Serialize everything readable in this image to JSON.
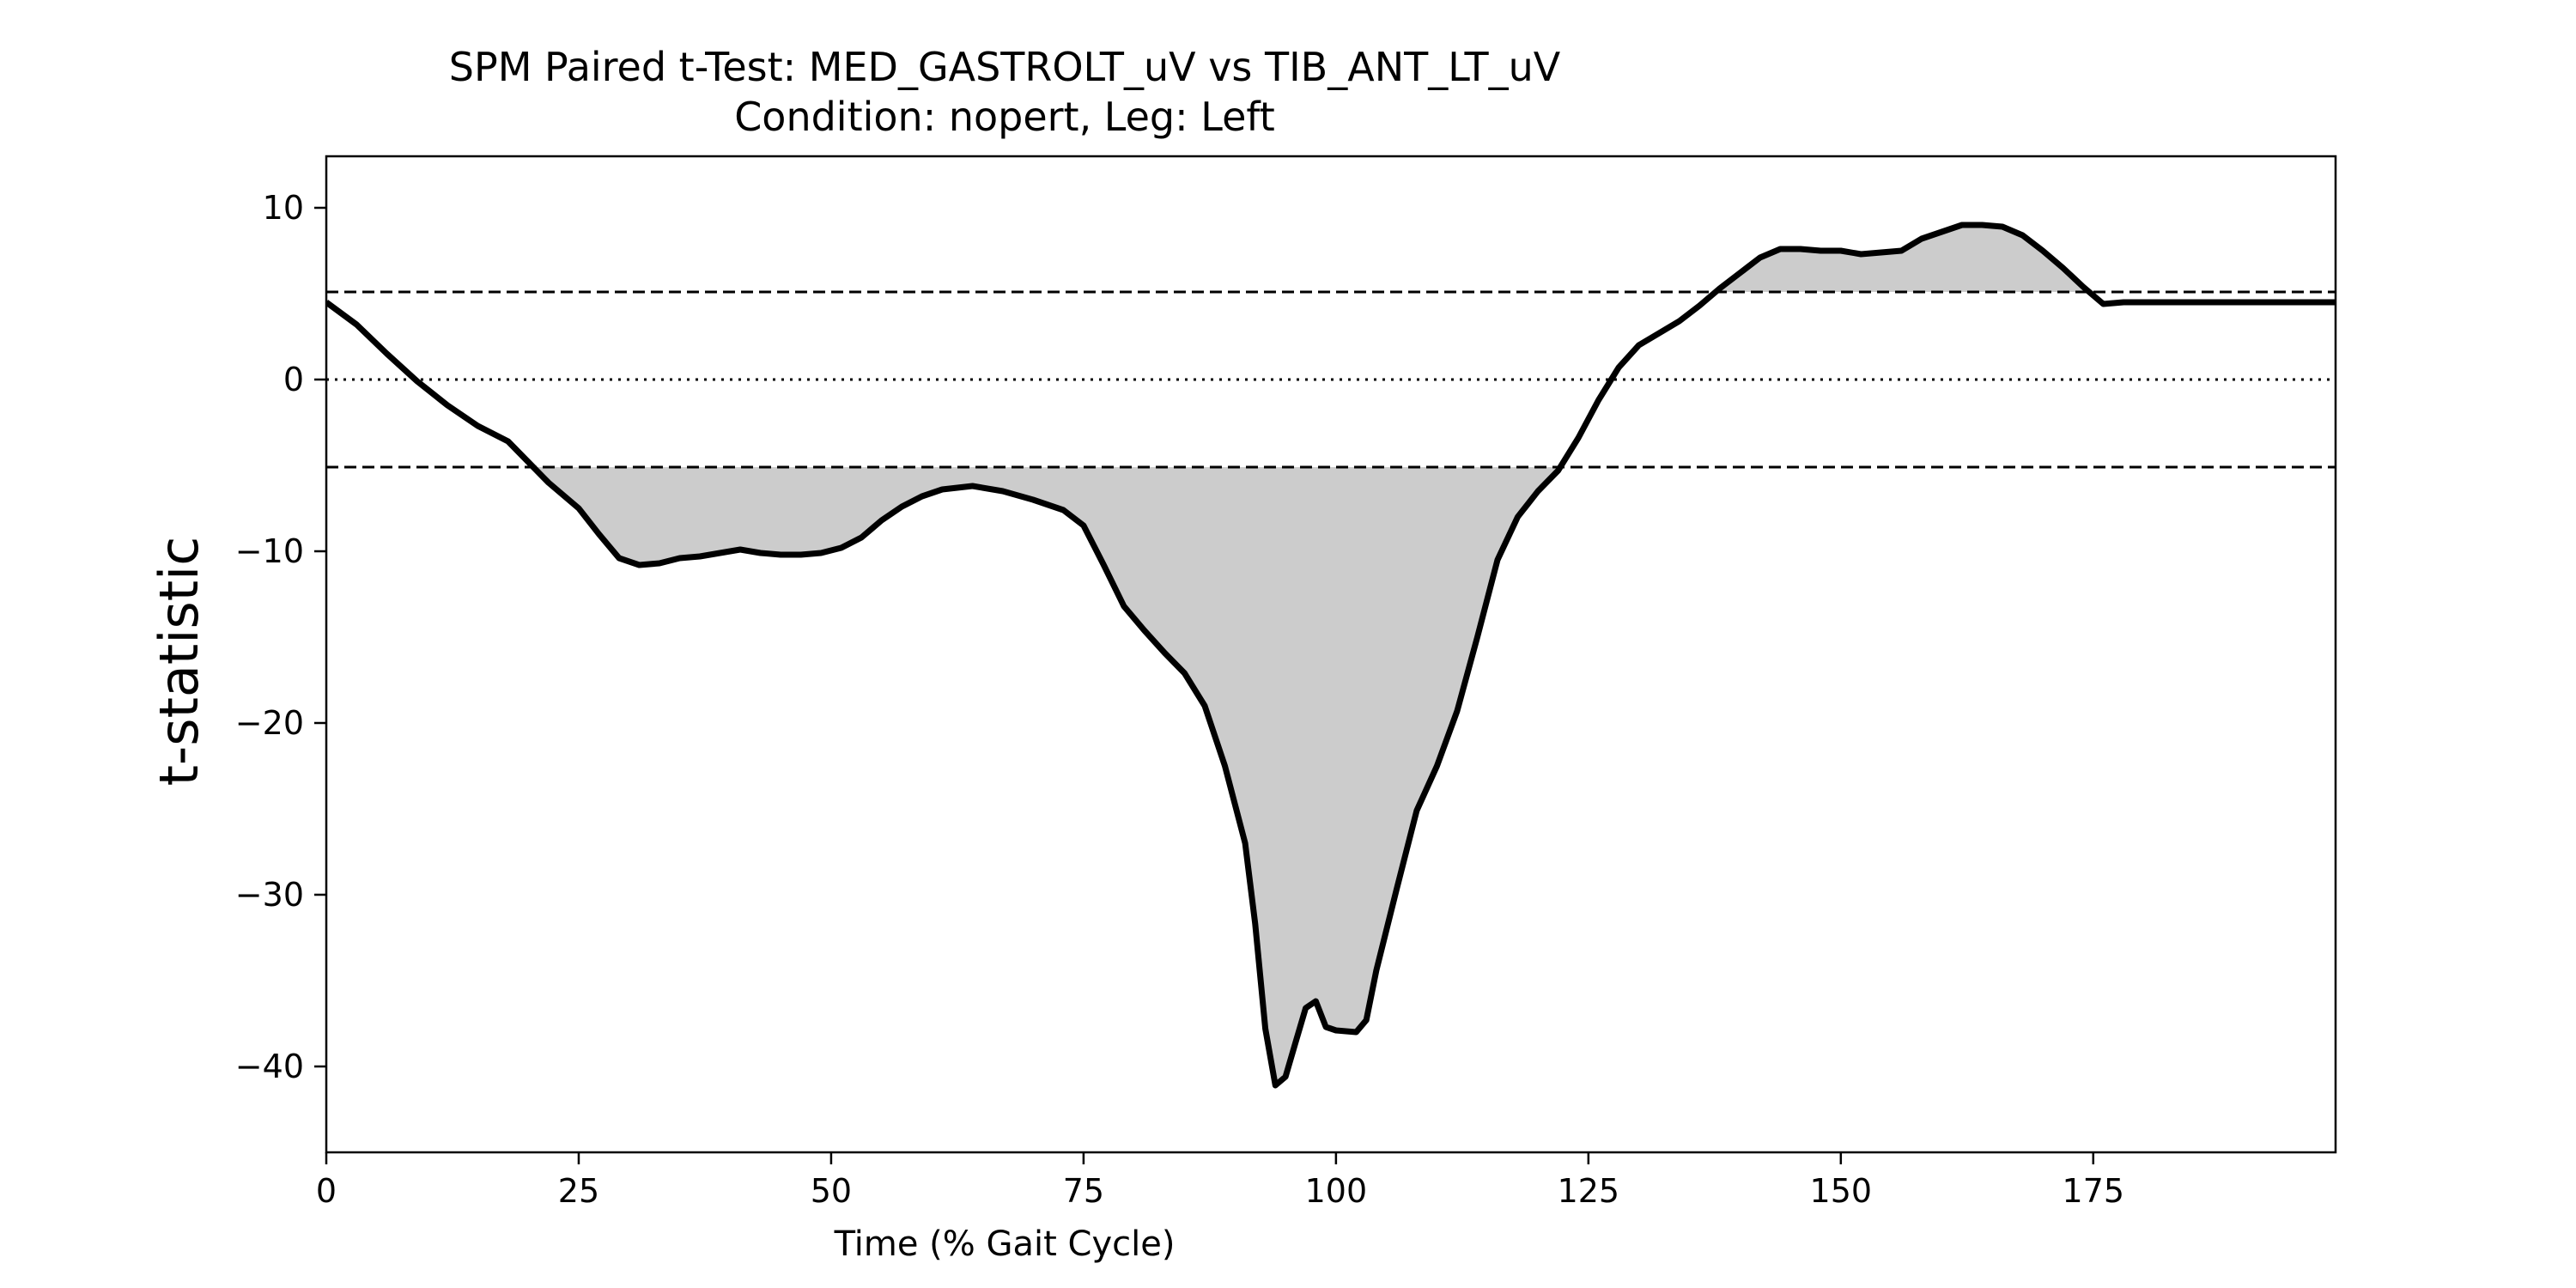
{
  "chart_data": {
    "type": "line",
    "title": "SPM Paired t-Test: MED_GASTROLT_uV vs TIB_ANT_LT_uV",
    "subtitle": "Condition: nopert, Leg: Left",
    "xlabel": "Time (% Gait Cycle)",
    "ylabel": "t-statistic",
    "xlim": [
      0,
      199
    ],
    "ylim": [
      -45,
      13
    ],
    "xticks": [
      0,
      25,
      50,
      75,
      100,
      125,
      150,
      175
    ],
    "xtick_labels": [
      "0",
      "25",
      "50",
      "75",
      "100",
      "125",
      "150",
      "175"
    ],
    "yticks": [
      10,
      0,
      -10,
      -20,
      -30,
      -40
    ],
    "ytick_labels": [
      "10",
      "0",
      "−10",
      "−20",
      "−30",
      "−40"
    ],
    "threshold": 5.1,
    "zero_line": 0,
    "grid": false,
    "colors": {
      "line": "#000000",
      "fill": "#cccccc",
      "threshold": "#000000"
    },
    "x": [
      0,
      3,
      6,
      9,
      12,
      15,
      18,
      20,
      22,
      25,
      27,
      29,
      31,
      33,
      35,
      37,
      39,
      41,
      43,
      45,
      47,
      49,
      51,
      53,
      55,
      57,
      59,
      61,
      64,
      67,
      70,
      73,
      75,
      77,
      79,
      81,
      83,
      85,
      87,
      89,
      91,
      92,
      93,
      94,
      95,
      96,
      97,
      98,
      99,
      100,
      102,
      103,
      104,
      106,
      108,
      110,
      112,
      114,
      116,
      118,
      120,
      122,
      124,
      126,
      128,
      130,
      132,
      134,
      136,
      138,
      140,
      142,
      144,
      146,
      148,
      150,
      152,
      154,
      156,
      158,
      160,
      162,
      164,
      166,
      168,
      170,
      172,
      174,
      176,
      178,
      180,
      182,
      184,
      186,
      188,
      190,
      192,
      194,
      196,
      198,
      199
    ],
    "y": [
      4.5,
      3.2,
      1.5,
      -0.1,
      -1.5,
      -2.7,
      -3.6,
      -4.8,
      -6.0,
      -7.5,
      -9.0,
      -10.4,
      -10.8,
      -10.7,
      -10.4,
      -10.3,
      -10.1,
      -9.9,
      -10.1,
      -10.2,
      -10.2,
      -10.1,
      -9.8,
      -9.2,
      -8.2,
      -7.4,
      -6.8,
      -6.4,
      -6.2,
      -6.5,
      -7.0,
      -7.6,
      -8.5,
      -10.8,
      -13.2,
      -14.6,
      -15.9,
      -17.1,
      -19.0,
      -22.5,
      -27.0,
      -31.7,
      -37.8,
      -41.1,
      -40.6,
      -38.6,
      -36.6,
      -36.2,
      -37.7,
      -37.9,
      -38.0,
      -37.3,
      -34.4,
      -29.7,
      -25.1,
      -22.5,
      -19.3,
      -15.0,
      -10.5,
      -8.0,
      -6.5,
      -5.3,
      -3.4,
      -1.2,
      0.7,
      2.0,
      2.7,
      3.4,
      4.3,
      5.3,
      6.2,
      7.1,
      7.6,
      7.6,
      7.5,
      7.5,
      7.3,
      7.4,
      7.5,
      8.2,
      8.6,
      9.0,
      9.0,
      8.9,
      8.4,
      7.5,
      6.5,
      5.4,
      4.4,
      4.5,
      4.5,
      4.5,
      4.5,
      4.5,
      4.5,
      4.5,
      4.5,
      4.5,
      4.5,
      4.5,
      4.5
    ]
  }
}
